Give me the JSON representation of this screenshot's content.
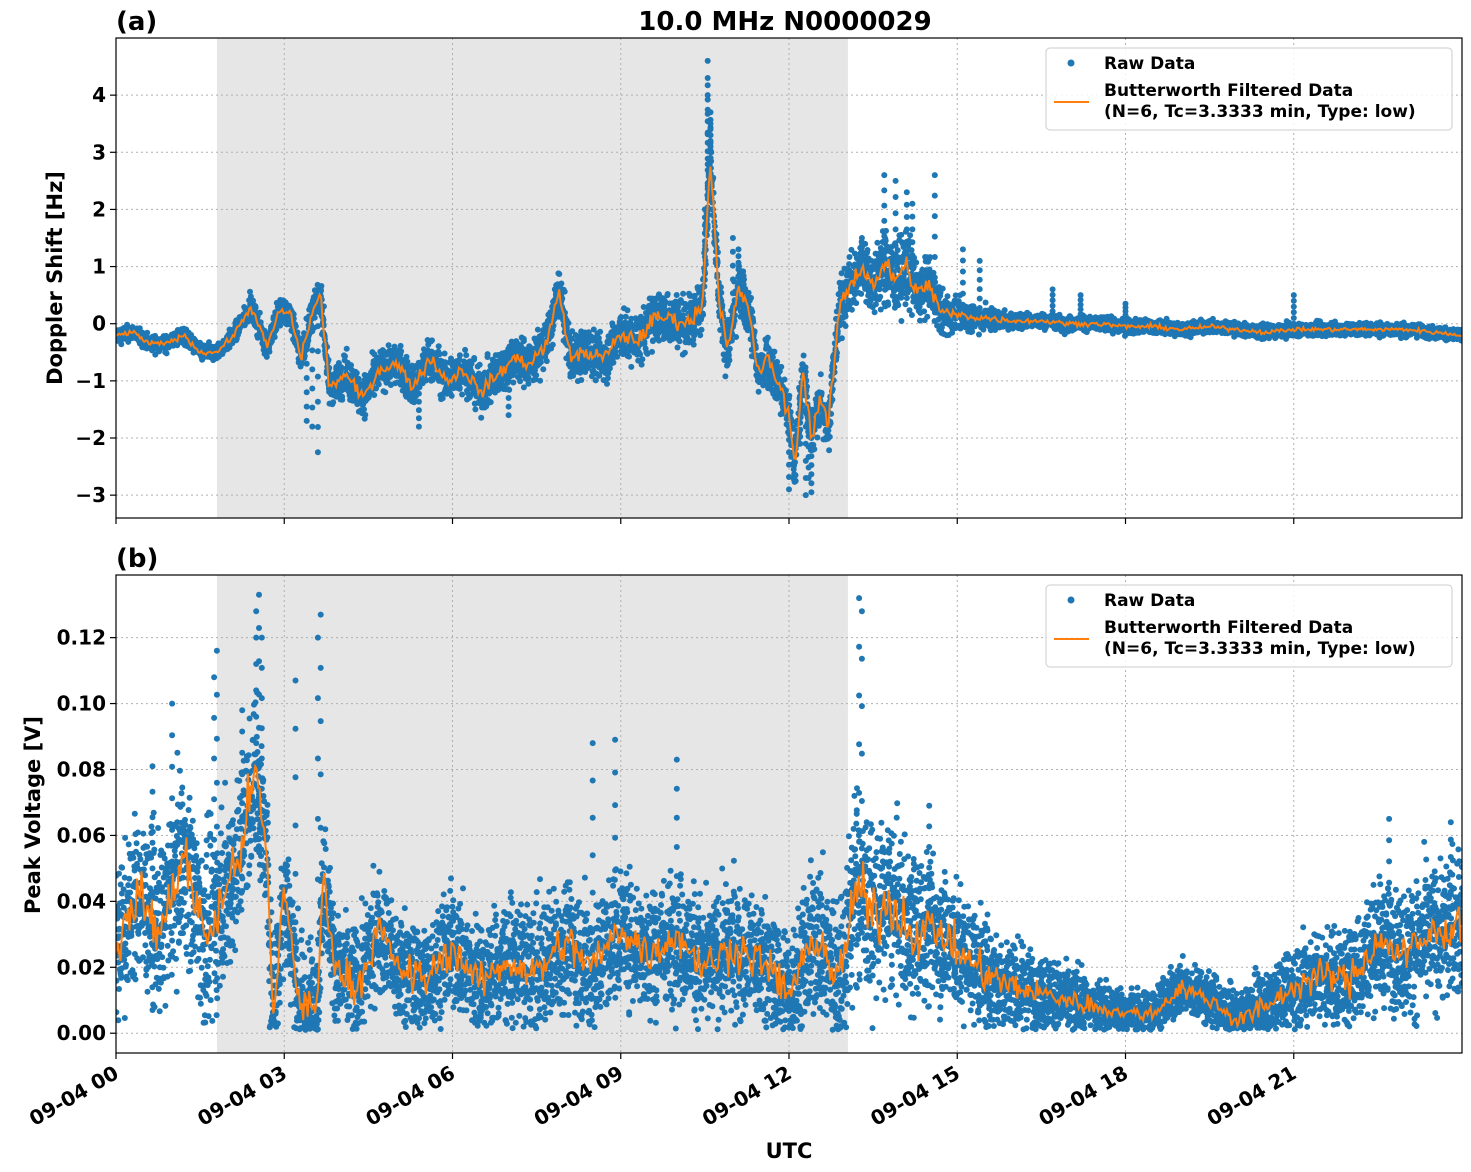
{
  "figure": {
    "title": "10.0 MHz N0000029",
    "xlabel": "UTC",
    "colors": {
      "raw": "#1f77b4",
      "filtered": "#ff7f0e",
      "shade": "#e6e6e6",
      "grid": "#b0b0b0"
    }
  },
  "chart_data": [
    {
      "type": "scatter",
      "panel_label": "(a)",
      "ylabel": "Doppler Shift [Hz]",
      "xlim_hours": [
        0,
        24
      ],
      "ylim": [
        -3.4,
        5.0
      ],
      "yticks": [
        -3,
        -2,
        -1,
        0,
        1,
        2,
        3,
        4
      ],
      "ytick_labels": [
        "−3",
        "−2",
        "−1",
        "0",
        "1",
        "2",
        "3",
        "4"
      ],
      "shaded_interval_hours": [
        1.8,
        13.05
      ],
      "grid": true,
      "legend": {
        "placement": "top-right",
        "entries": [
          "Raw Data",
          "Butterworth Filtered Data",
          "(N=6, Tc=3.3333 min, Type: low)"
        ]
      },
      "series": [
        {
          "name": "Butterworth Filtered Data",
          "kind": "line",
          "x": [
            0,
            0.3,
            0.6,
            0.9,
            1.2,
            1.5,
            1.8,
            2.1,
            2.4,
            2.7,
            2.9,
            3.1,
            3.3,
            3.5,
            3.65,
            3.8,
            4.1,
            4.4,
            4.7,
            5.0,
            5.3,
            5.6,
            5.9,
            6.2,
            6.5,
            6.8,
            7.1,
            7.4,
            7.7,
            7.9,
            8.1,
            8.4,
            8.7,
            9.0,
            9.3,
            9.6,
            9.9,
            10.2,
            10.45,
            10.6,
            10.75,
            10.9,
            11.1,
            11.3,
            11.45,
            11.6,
            11.8,
            12.0,
            12.1,
            12.25,
            12.4,
            12.55,
            12.7,
            12.9,
            13.1,
            13.3,
            13.5,
            13.7,
            13.9,
            14.1,
            14.3,
            14.5,
            14.7,
            15.0,
            15.5,
            16.0,
            16.5,
            17.0,
            17.5,
            18.0,
            18.5,
            19.0,
            19.5,
            20.0,
            20.5,
            21.0,
            21.5,
            22.0,
            22.5,
            23.0,
            23.5,
            24.0
          ],
          "values": [
            -0.2,
            -0.15,
            -0.35,
            -0.35,
            -0.2,
            -0.5,
            -0.5,
            -0.2,
            0.3,
            -0.4,
            0.2,
            0.2,
            -0.6,
            0.2,
            0.5,
            -1.1,
            -0.9,
            -1.3,
            -0.8,
            -0.7,
            -1.1,
            -0.6,
            -1.0,
            -0.8,
            -1.2,
            -0.9,
            -0.6,
            -0.7,
            -0.3,
            0.6,
            -0.6,
            -0.5,
            -0.6,
            -0.2,
            -0.3,
            0.1,
            0.1,
            0.0,
            0.3,
            2.9,
            0.5,
            -0.5,
            0.6,
            0.2,
            -0.9,
            -0.6,
            -1.0,
            -1.6,
            -2.5,
            -0.8,
            -2.0,
            -1.3,
            -1.8,
            0.3,
            0.7,
            1.0,
            0.7,
            1.0,
            0.8,
            1.0,
            0.5,
            0.7,
            0.2,
            0.15,
            0.1,
            0.05,
            0.05,
            0.0,
            0.0,
            -0.05,
            -0.05,
            -0.1,
            -0.05,
            -0.1,
            -0.15,
            -0.1,
            -0.1,
            -0.1,
            -0.1,
            -0.1,
            -0.15,
            -0.2
          ]
        },
        {
          "name": "Raw Data",
          "kind": "points",
          "spread_hours": [
            0,
            1.8,
            4.0,
            7.0,
            10.0,
            12.0,
            13.2,
            14.0,
            15.0,
            16.0,
            20.0,
            24.0
          ],
          "spread_hz": [
            0.12,
            0.12,
            0.3,
            0.35,
            0.4,
            0.4,
            0.45,
            0.6,
            0.25,
            0.12,
            0.1,
            0.1
          ],
          "outlier_hours": [
            10.55,
            10.55,
            10.55,
            10.6,
            10.6,
            10.5,
            11.0,
            11.1,
            12.0,
            12.3,
            12.35,
            12.4,
            12.2,
            3.6,
            3.5,
            3.4,
            5.4,
            7.0,
            13.3,
            13.7,
            13.9,
            14.1,
            14.2,
            14.6,
            15.1,
            15.4,
            16.7,
            17.2,
            21.0,
            18.0
          ],
          "outlier_hz": [
            4.6,
            4.3,
            4.0,
            3.7,
            3.5,
            2.0,
            1.5,
            1.3,
            -2.9,
            -3.0,
            -2.7,
            -2.95,
            -2.1,
            -2.25,
            -1.8,
            -1.7,
            -1.8,
            -1.6,
            1.5,
            2.6,
            2.5,
            2.3,
            2.1,
            2.6,
            1.3,
            1.1,
            0.6,
            0.5,
            0.5,
            0.35
          ]
        }
      ]
    },
    {
      "type": "scatter",
      "panel_label": "(b)",
      "ylabel": "Peak Voltage [V]",
      "xlim_hours": [
        0,
        24
      ],
      "ylim": [
        -0.006,
        0.139
      ],
      "yticks": [
        0.0,
        0.02,
        0.04,
        0.06,
        0.08,
        0.1,
        0.12
      ],
      "ytick_labels": [
        "0.00",
        "0.02",
        "0.04",
        "0.06",
        "0.08",
        "0.10",
        "0.12"
      ],
      "xticks_hours": [
        0,
        3,
        6,
        9,
        12,
        15,
        18,
        21
      ],
      "xtick_labels": [
        "09-04 00",
        "09-04 03",
        "09-04 06",
        "09-04 09",
        "09-04 12",
        "09-04 15",
        "09-04 18",
        "09-04 21"
      ],
      "shaded_interval_hours": [
        1.8,
        13.05
      ],
      "grid": true,
      "legend": {
        "placement": "top-right",
        "entries": [
          "Raw Data",
          "Butterworth Filtered Data",
          "(N=6, Tc=3.3333 min, Type: low)"
        ]
      },
      "series": [
        {
          "name": "Butterworth Filtered Data",
          "kind": "line",
          "x": [
            0,
            0.4,
            0.8,
            1.2,
            1.6,
            1.9,
            2.2,
            2.5,
            2.7,
            2.8,
            3.0,
            3.3,
            3.6,
            3.7,
            3.9,
            4.3,
            4.7,
            5.0,
            5.5,
            6.0,
            6.5,
            7.0,
            7.5,
            8.0,
            8.5,
            9.0,
            9.5,
            10.0,
            10.5,
            11.0,
            11.5,
            12.0,
            12.5,
            12.9,
            13.2,
            13.5,
            13.8,
            14.2,
            14.6,
            15.0,
            15.5,
            16.0,
            16.5,
            17.0,
            17.5,
            18.0,
            18.5,
            19.0,
            19.5,
            20.0,
            20.5,
            21.0,
            21.5,
            22.0,
            22.5,
            23.0,
            23.5,
            24.0
          ],
          "values": [
            0.026,
            0.042,
            0.03,
            0.055,
            0.028,
            0.04,
            0.055,
            0.08,
            0.05,
            0.004,
            0.045,
            0.006,
            0.01,
            0.05,
            0.02,
            0.014,
            0.032,
            0.02,
            0.016,
            0.026,
            0.015,
            0.022,
            0.018,
            0.028,
            0.02,
            0.032,
            0.024,
            0.03,
            0.02,
            0.026,
            0.022,
            0.012,
            0.03,
            0.015,
            0.045,
            0.035,
            0.04,
            0.03,
            0.032,
            0.025,
            0.018,
            0.014,
            0.012,
            0.01,
            0.008,
            0.006,
            0.006,
            0.014,
            0.01,
            0.004,
            0.008,
            0.014,
            0.018,
            0.016,
            0.028,
            0.024,
            0.03,
            0.034
          ]
        },
        {
          "name": "Raw Data",
          "kind": "points",
          "spread_hours": [
            0,
            1.8,
            2.8,
            4.0,
            8.0,
            12.0,
            13.2,
            14.5,
            16.0,
            18.0,
            20.0,
            22.0,
            24.0
          ],
          "spread_v": [
            0.02,
            0.025,
            0.02,
            0.015,
            0.017,
            0.017,
            0.025,
            0.02,
            0.012,
            0.006,
            0.008,
            0.014,
            0.02
          ],
          "outlier_hours": [
            2.55,
            2.5,
            2.6,
            3.65,
            3.6,
            13.25,
            13.3,
            1.8,
            1.75,
            3.2,
            8.5,
            8.9,
            10.0,
            2.25,
            0.65,
            1.0,
            14.5,
            22.7,
            23.8
          ],
          "outlier_v": [
            0.133,
            0.128,
            0.12,
            0.127,
            0.12,
            0.132,
            0.128,
            0.116,
            0.108,
            0.107,
            0.088,
            0.089,
            0.083,
            0.098,
            0.081,
            0.1,
            0.069,
            0.065,
            0.064
          ]
        }
      ]
    }
  ]
}
